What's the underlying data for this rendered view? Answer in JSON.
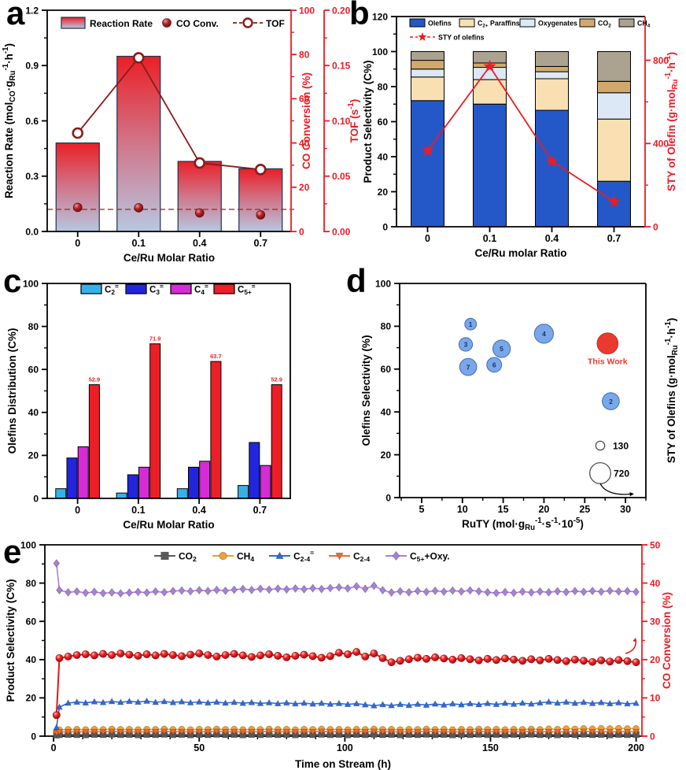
{
  "figure": {
    "panels": [
      {
        "letter": "a"
      },
      {
        "letter": "b"
      },
      {
        "letter": "c"
      },
      {
        "letter": "d"
      },
      {
        "letter": "e"
      }
    ]
  },
  "colors": {
    "red_axis": "#EC1B23",
    "dark_red": "#8B1A1A",
    "bar_gradient_top": "#EA1F26",
    "bar_gradient_mid": "#D0768A",
    "bar_gradient_bottom": "#B7C7E0"
  },
  "chart_data": [
    {
      "id": "a",
      "type": "bar",
      "xlabel": "Ce/Ru Molar Ratio",
      "categories": [
        "0",
        "0.1",
        "0.4",
        "0.7"
      ],
      "left_axis": {
        "label": "Reaction Rate (mol~CO~·g~Ru~^-1^·h^-1^)",
        "min": 0,
        "max": 1.2,
        "step": 0.3,
        "minor": 0.15,
        "decimals": 1
      },
      "right_axis_co": {
        "label": "CO Conversion (%)",
        "min": 0,
        "max": 100,
        "step": 20,
        "minor": 10,
        "decimals": 0
      },
      "right_axis_tof": {
        "label": "TOF (s^-1^)",
        "min": 0,
        "max": 0.2,
        "step": 0.05,
        "minor": 0.025,
        "decimals": 2
      },
      "legend": {
        "reaction_rate": "Reaction Rate",
        "co_conv": "CO Conv.",
        "tof": "TOF"
      },
      "reaction_rate": [
        0.48,
        0.95,
        0.38,
        0.34
      ],
      "co_conversion": [
        10.9,
        10.7,
        8.4,
        7.5
      ],
      "tof": [
        0.089,
        0.157,
        0.062,
        0.056
      ],
      "dashed_ref_co_conversion": 10
    },
    {
      "id": "b",
      "type": "stacked-bar",
      "xlabel": "Ce/Ru molar Ratio",
      "categories": [
        "0",
        "0.1",
        "0.4",
        "0.7"
      ],
      "left_axis": {
        "label": "Product Selectivity (C%)",
        "min": 0,
        "max": 120,
        "step": 20,
        "minor": 10,
        "decimals": 0
      },
      "right_axis": {
        "label": "STY of Olefin (g·mol~Ru~^-1^·h^-1^)",
        "min": 0,
        "max": 1010,
        "ticks": [
          0,
          400,
          800
        ],
        "minor_ticks": [
          200,
          600
        ],
        "decimals": 0
      },
      "series": [
        {
          "name": "Olefins",
          "color": "#2458C8",
          "values": [
            72,
            70,
            66.5,
            26
          ]
        },
        {
          "name": "C~2+~ Paraffins",
          "color": "#F8E0B2",
          "values": [
            13.5,
            14,
            18,
            35.5
          ]
        },
        {
          "name": "Oxygenates",
          "color": "#DCE8F5",
          "values": [
            4.5,
            7,
            4,
            15
          ]
        },
        {
          "name": "CO~2~",
          "color": "#D2A96C",
          "values": [
            5,
            2.5,
            3,
            6.5
          ]
        },
        {
          "name": "CH~4~",
          "color": "#ABA28F",
          "values": [
            5,
            6.5,
            8.5,
            17
          ]
        }
      ],
      "sty_of_olefins": {
        "label": "STY of olefins",
        "color": "#EA1C24",
        "values": [
          365,
          770,
          315,
          121
        ]
      }
    },
    {
      "id": "c",
      "type": "grouped-bar",
      "xlabel": "Ce/Ru Molar Ratio",
      "ylabel": "Olefins Distribution (C%)",
      "categories": [
        "0",
        "0.1",
        "0.4",
        "0.7"
      ],
      "y_axis": {
        "min": 0,
        "max": 100,
        "step": 20,
        "minor": 10,
        "decimals": 0
      },
      "series": [
        {
          "name": "C~2~^=^",
          "color": "#35B1E8",
          "values": [
            4.5,
            2.5,
            4.5,
            6
          ]
        },
        {
          "name": "C~3~^=^",
          "color": "#2126DE",
          "values": [
            18.8,
            11,
            14.5,
            26
          ]
        },
        {
          "name": "C~4~^=^",
          "color": "#D62BD6",
          "values": [
            24,
            14.5,
            17.3,
            15.3
          ]
        },
        {
          "name": "C~5+~^=^",
          "color": "#EC1F26",
          "values": [
            52.9,
            71.9,
            63.7,
            52.9
          ],
          "labels": [
            "52.9",
            "71.9",
            "63.7",
            "52.9"
          ]
        }
      ]
    },
    {
      "id": "d",
      "type": "bubble",
      "xlabel": "RuTY (mol·g~Ru~^-1^·s^-1^·10^-5^)",
      "ylabel": "Olefins Selectivity (%)",
      "right_label": "STY of Olefins (g·mol~Ru~^-1^·h^-1^)",
      "x_axis": {
        "min": 2.3,
        "max": 32.5,
        "first": 5,
        "last": 30,
        "step": 5,
        "minor": 2.5,
        "decimals": 0
      },
      "y_axis": {
        "min": 0,
        "max": 100,
        "step": 20,
        "minor": 10,
        "decimals": 0
      },
      "bubble_color": "#7AA7E8",
      "bubble_stroke": "#3B6CC0",
      "highlight_color": "#EA3A30",
      "points": [
        {
          "label": "1",
          "x": 11,
          "y": 81,
          "sty": 220
        },
        {
          "label": "2",
          "x": 28.2,
          "y": 45,
          "sty": 470
        },
        {
          "label": "3",
          "x": 10.4,
          "y": 71.5,
          "sty": 300
        },
        {
          "label": "4",
          "x": 20,
          "y": 76.5,
          "sty": 590
        },
        {
          "label": "5",
          "x": 14.8,
          "y": 69.5,
          "sty": 500
        },
        {
          "label": "6",
          "x": 13.9,
          "y": 62,
          "sty": 360
        },
        {
          "label": "7",
          "x": 10.7,
          "y": 61,
          "sty": 470
        },
        {
          "label": "This Work",
          "x": 27.8,
          "y": 72,
          "sty": 720,
          "highlight": true
        }
      ],
      "size_legend": [
        {
          "sty": 130,
          "label": "130"
        },
        {
          "sty": 720,
          "label": "720"
        }
      ]
    },
    {
      "id": "e",
      "type": "line",
      "xlabel": "Time on Stream (h)",
      "ylabel": "Product Selectivity (C%)",
      "right_label": "CO Conversion (%)",
      "x_axis": {
        "min": -3,
        "max": 202,
        "first": 0,
        "last": 200,
        "step": 50,
        "minor": 10,
        "decimals": 0
      },
      "left_axis": {
        "min": 0,
        "max": 100,
        "step": 20,
        "minor": 10,
        "decimals": 0
      },
      "right_axis": {
        "min": 0,
        "max": 50,
        "step": 10,
        "minor": 5,
        "decimals": 0
      },
      "time_h": [
        1,
        2,
        5,
        8,
        11,
        14,
        17,
        20,
        23,
        26,
        29,
        32,
        35,
        38,
        41,
        44,
        47,
        50,
        53,
        56,
        59,
        62,
        65,
        68,
        71,
        74,
        77,
        80,
        83,
        86,
        89,
        92,
        95,
        98,
        101,
        104,
        107,
        110,
        113,
        116,
        119,
        122,
        125,
        128,
        131,
        134,
        137,
        140,
        143,
        146,
        149,
        152,
        155,
        158,
        161,
        164,
        167,
        170,
        173,
        176,
        179,
        182,
        185,
        188,
        191,
        194,
        197,
        200
      ],
      "series": [
        {
          "name": "CO~2~",
          "marker": "square",
          "color": "#595959",
          "axis": "left",
          "values": [
            0.6,
            0.8,
            0.9,
            0.8,
            0.7,
            0.9,
            0.8,
            1.0,
            0.8,
            0.9,
            0.7,
            0.9,
            0.8,
            1.0,
            0.8,
            0.9,
            0.7,
            0.9,
            0.8,
            1.0,
            0.8,
            0.9,
            0.7,
            0.9,
            0.8,
            1.0,
            0.8,
            0.9,
            0.7,
            0.9,
            0.8,
            1.0,
            0.8,
            0.9,
            0.7,
            0.9,
            0.8,
            1.0,
            0.8,
            0.9,
            0.7,
            0.9,
            0.8,
            1.0,
            0.8,
            0.9,
            0.7,
            0.9,
            0.8,
            1.0,
            0.8,
            0.9,
            0.7,
            0.9,
            0.8,
            1.0,
            0.8,
            0.9,
            0.7,
            0.9,
            0.8,
            1.0,
            0.8,
            0.9,
            0.7,
            0.9,
            0.8,
            0.9
          ]
        },
        {
          "name": "CH~4~",
          "marker": "circle",
          "color": "#EBA23A",
          "axis": "left",
          "values": [
            2.6,
            3.3,
            3.5,
            3.6,
            3.4,
            3.6,
            3.5,
            3.7,
            3.5,
            3.6,
            3.4,
            3.6,
            3.5,
            3.7,
            3.5,
            3.6,
            3.4,
            3.6,
            3.5,
            3.7,
            3.5,
            3.6,
            3.4,
            3.6,
            3.5,
            3.7,
            3.5,
            3.6,
            3.4,
            3.6,
            3.5,
            3.7,
            3.5,
            3.6,
            3.4,
            3.6,
            3.5,
            3.7,
            3.5,
            3.6,
            3.4,
            3.6,
            3.5,
            3.7,
            3.5,
            3.6,
            3.4,
            3.6,
            3.5,
            3.7,
            3.5,
            3.6,
            3.4,
            3.6,
            3.5,
            3.7,
            3.5,
            3.8,
            3.6,
            3.9,
            3.7,
            4.0,
            3.8,
            4.0,
            3.9,
            4.1,
            3.9,
            4.0
          ]
        },
        {
          "name": "C~2-4~^=^",
          "marker": "triangle-up",
          "color": "#2F6BDB",
          "axis": "left",
          "values": [
            4.5,
            15.2,
            17.3,
            17.8,
            17.4,
            18.0,
            17.6,
            18.1,
            17.7,
            18.2,
            17.8,
            18.3,
            17.7,
            18.1,
            17.6,
            18.0,
            17.5,
            17.9,
            17.4,
            17.8,
            17.3,
            17.7,
            17.2,
            17.6,
            17.1,
            17.5,
            17.0,
            17.4,
            16.9,
            17.3,
            16.8,
            17.2,
            16.7,
            17.1,
            16.6,
            17.0,
            16.4,
            15.9,
            16.5,
            16.0,
            16.6,
            16.1,
            16.7,
            16.2,
            16.8,
            16.3,
            16.9,
            16.4,
            17.0,
            16.5,
            17.1,
            16.6,
            17.2,
            16.7,
            17.3,
            16.8,
            17.4,
            17.9,
            17.3,
            17.8,
            17.2,
            17.7,
            17.1,
            17.6,
            17.0,
            17.5,
            16.9,
            17.2
          ]
        },
        {
          "name": "C~2-4~",
          "marker": "triangle-down",
          "color": "#ED6A2E",
          "axis": "left",
          "values": [
            1.8,
            2.2,
            2.3,
            2.4,
            2.2,
            2.4,
            2.3,
            2.5,
            2.3,
            2.4,
            2.2,
            2.4,
            2.3,
            2.5,
            2.3,
            2.4,
            2.2,
            2.4,
            2.3,
            2.5,
            2.3,
            2.4,
            2.2,
            2.4,
            2.3,
            2.5,
            2.3,
            2.4,
            2.2,
            2.4,
            2.3,
            2.5,
            2.3,
            2.4,
            2.2,
            2.4,
            2.3,
            2.5,
            2.3,
            2.4,
            2.2,
            2.4,
            2.3,
            2.5,
            2.3,
            2.4,
            2.2,
            2.4,
            2.3,
            2.5,
            2.3,
            2.4,
            2.2,
            2.4,
            2.3,
            2.5,
            2.3,
            2.4,
            2.2,
            2.4,
            2.3,
            2.5,
            2.3,
            2.4,
            2.2,
            2.4,
            2.3,
            2.4
          ]
        },
        {
          "name": "C~5+~+Oxy.",
          "marker": "diamond",
          "color": "#A780D8",
          "axis": "left",
          "values": [
            90.3,
            76.3,
            75.2,
            75.6,
            74.9,
            75.4,
            74.7,
            75.1,
            74.6,
            75.0,
            75.4,
            75.0,
            75.6,
            75.2,
            75.8,
            76.1,
            75.7,
            76.3,
            75.9,
            76.4,
            76.0,
            76.5,
            76.9,
            76.4,
            77.0,
            76.6,
            77.1,
            76.7,
            77.2,
            76.8,
            77.3,
            76.9,
            77.4,
            77.8,
            77.2,
            78.3,
            77.0,
            78.6,
            76.3,
            75.1,
            75.7,
            75.2,
            75.9,
            75.4,
            76.0,
            75.5,
            76.1,
            75.6,
            76.2,
            75.7,
            75.2,
            74.8,
            75.3,
            74.9,
            75.5,
            75.1,
            75.6,
            75.2,
            75.7,
            75.3,
            75.8,
            75.4,
            75.9,
            75.5,
            76.0,
            75.6,
            75.8,
            75.4
          ]
        }
      ],
      "co_conversion": {
        "name": "CO Conversion",
        "marker": "sphere",
        "color": "#E0181C",
        "axis": "right",
        "values": [
          5.5,
          20.4,
          20.8,
          21.2,
          21.4,
          21.1,
          21.5,
          21.2,
          21.6,
          21.3,
          21.0,
          21.4,
          21.1,
          21.5,
          21.2,
          20.9,
          21.3,
          21.6,
          21.2,
          20.8,
          21.2,
          21.5,
          21.1,
          20.7,
          21.1,
          21.4,
          21.0,
          20.6,
          21.0,
          21.3,
          20.9,
          20.5,
          20.9,
          21.8,
          21.4,
          22.0,
          20.8,
          21.6,
          20.4,
          19.3,
          19.7,
          20.1,
          20.5,
          20.2,
          20.6,
          20.3,
          20.0,
          20.4,
          20.1,
          19.8,
          20.2,
          19.9,
          20.3,
          20.0,
          19.7,
          20.1,
          19.8,
          20.2,
          19.9,
          19.6,
          20.0,
          19.7,
          19.4,
          19.8,
          19.5,
          19.9,
          19.6,
          19.3
        ]
      }
    }
  ]
}
